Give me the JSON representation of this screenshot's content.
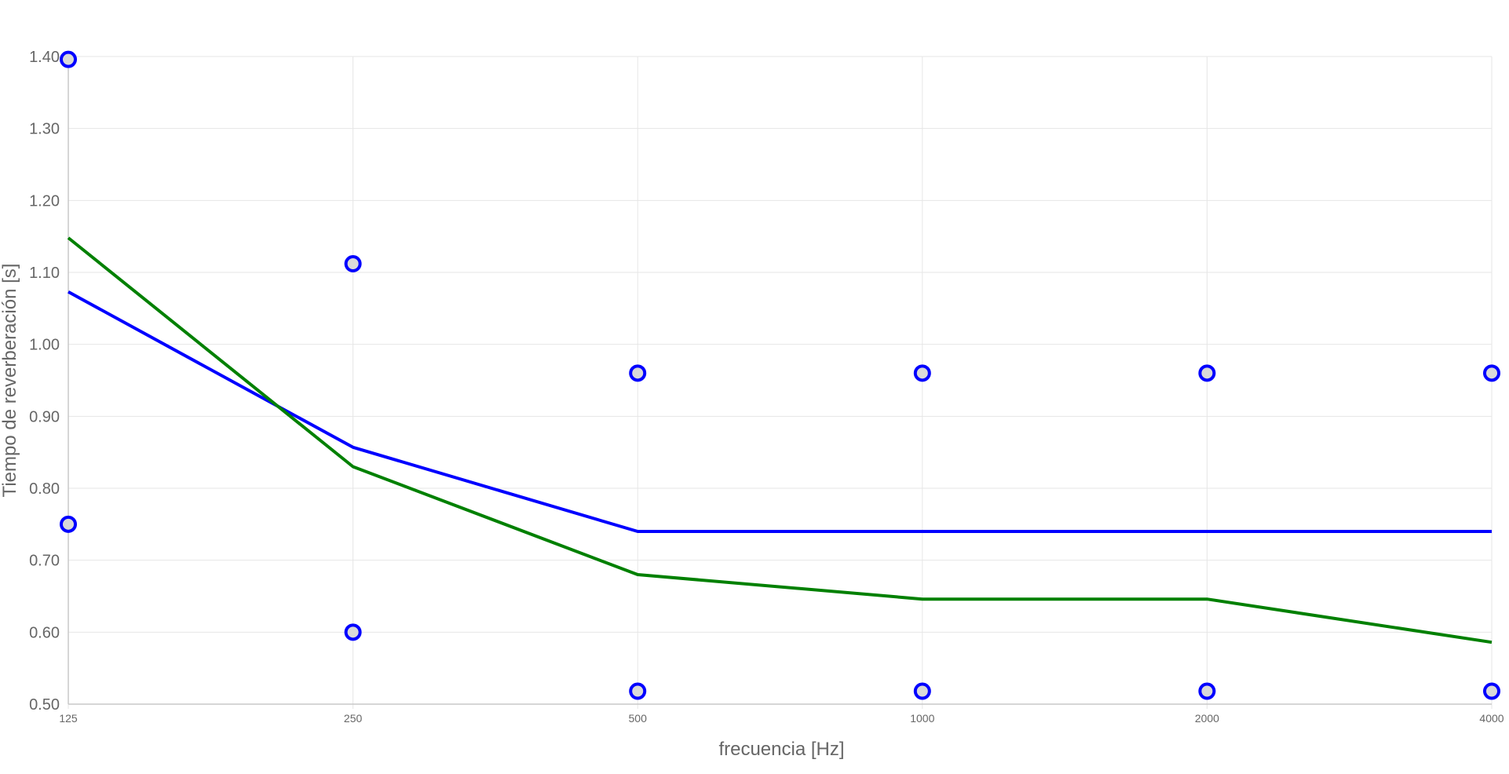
{
  "chart_data": {
    "type": "line",
    "title": "",
    "xlabel": "frecuencia [Hz]",
    "ylabel": "Tiempo de reverberación [s]",
    "categories": [
      "125",
      "250",
      "500",
      "1000",
      "2000",
      "4000"
    ],
    "ylim": [
      0.5,
      1.4
    ],
    "yticks": [
      "0.50",
      "0.60",
      "0.70",
      "0.80",
      "0.90",
      "1.00",
      "1.10",
      "1.20",
      "1.30",
      "1.40"
    ],
    "grid": true,
    "legend": "none",
    "series": [
      {
        "kind": "line",
        "color": "#0000ff",
        "values": [
          1.073,
          0.857,
          0.74,
          0.74,
          0.74,
          0.74
        ]
      },
      {
        "kind": "line",
        "color": "#008000",
        "values": [
          1.148,
          0.83,
          0.68,
          0.646,
          0.646,
          0.586
        ]
      },
      {
        "kind": "points",
        "color": "#0000ff",
        "values": [
          1.396,
          1.112,
          0.96,
          0.96,
          0.96,
          0.96
        ]
      },
      {
        "kind": "points",
        "color": "#0000ff",
        "values": [
          0.75,
          0.6,
          0.518,
          0.518,
          0.518,
          0.518
        ]
      }
    ]
  }
}
